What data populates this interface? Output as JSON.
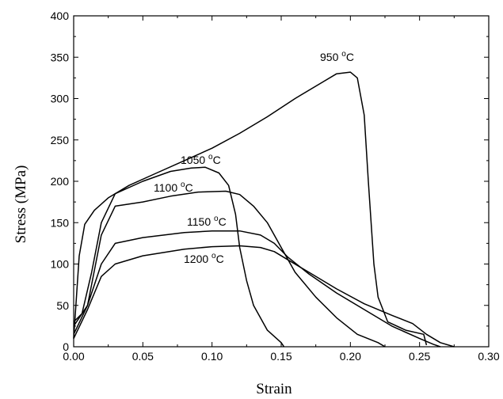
{
  "chart_data": {
    "type": "line",
    "title": "",
    "xlabel": "Strain",
    "ylabel": "Stress (MPa)",
    "xlim": [
      0.0,
      0.3
    ],
    "ylim": [
      0,
      400
    ],
    "grid": false,
    "legend": "none",
    "x_ticks": [
      "0.00",
      "0.05",
      "0.10",
      "0.15",
      "0.20",
      "0.25",
      "0.30"
    ],
    "y_ticks": [
      "0",
      "50",
      "100",
      "150",
      "200",
      "250",
      "300",
      "350",
      "400"
    ],
    "series": [
      {
        "name": "950 °C",
        "label_base": "950 ",
        "label_unit": "C",
        "points": [
          [
            0.0,
            10
          ],
          [
            0.004,
            110
          ],
          [
            0.008,
            148
          ],
          [
            0.015,
            165
          ],
          [
            0.025,
            180
          ],
          [
            0.04,
            195
          ],
          [
            0.06,
            210
          ],
          [
            0.08,
            225
          ],
          [
            0.1,
            240
          ],
          [
            0.12,
            258
          ],
          [
            0.14,
            278
          ],
          [
            0.16,
            300
          ],
          [
            0.18,
            320
          ],
          [
            0.19,
            330
          ],
          [
            0.2,
            332
          ],
          [
            0.205,
            325
          ],
          [
            0.21,
            280
          ],
          [
            0.213,
            200
          ],
          [
            0.217,
            100
          ],
          [
            0.22,
            60
          ],
          [
            0.227,
            30
          ],
          [
            0.24,
            20
          ],
          [
            0.253,
            15
          ],
          [
            0.255,
            2
          ]
        ]
      },
      {
        "name": "1050 °C",
        "label_base": "1050 ",
        "label_unit": "C",
        "points": [
          [
            0.0,
            30
          ],
          [
            0.006,
            40
          ],
          [
            0.013,
            90
          ],
          [
            0.02,
            150
          ],
          [
            0.03,
            185
          ],
          [
            0.05,
            200
          ],
          [
            0.07,
            212
          ],
          [
            0.085,
            216
          ],
          [
            0.095,
            217
          ],
          [
            0.105,
            210
          ],
          [
            0.112,
            195
          ],
          [
            0.117,
            160
          ],
          [
            0.12,
            120
          ],
          [
            0.125,
            80
          ],
          [
            0.13,
            50
          ],
          [
            0.14,
            20
          ],
          [
            0.15,
            5
          ],
          [
            0.152,
            0
          ]
        ]
      },
      {
        "name": "1100 °C",
        "label_base": "1100 ",
        "label_unit": "C",
        "points": [
          [
            0.0,
            25
          ],
          [
            0.01,
            50
          ],
          [
            0.02,
            135
          ],
          [
            0.03,
            170
          ],
          [
            0.05,
            175
          ],
          [
            0.07,
            182
          ],
          [
            0.09,
            187
          ],
          [
            0.11,
            188
          ],
          [
            0.12,
            184
          ],
          [
            0.13,
            170
          ],
          [
            0.14,
            150
          ],
          [
            0.15,
            120
          ],
          [
            0.16,
            90
          ],
          [
            0.175,
            60
          ],
          [
            0.19,
            35
          ],
          [
            0.205,
            15
          ],
          [
            0.22,
            5
          ],
          [
            0.225,
            0
          ]
        ]
      },
      {
        "name": "1150 °C",
        "label_base": "1150 ",
        "label_unit": "C",
        "points": [
          [
            0.0,
            15
          ],
          [
            0.01,
            50
          ],
          [
            0.02,
            100
          ],
          [
            0.03,
            125
          ],
          [
            0.05,
            132
          ],
          [
            0.08,
            138
          ],
          [
            0.1,
            140
          ],
          [
            0.12,
            140
          ],
          [
            0.135,
            135
          ],
          [
            0.145,
            125
          ],
          [
            0.155,
            108
          ],
          [
            0.17,
            88
          ],
          [
            0.19,
            65
          ],
          [
            0.21,
            45
          ],
          [
            0.23,
            25
          ],
          [
            0.25,
            10
          ],
          [
            0.26,
            3
          ],
          [
            0.265,
            0
          ]
        ]
      },
      {
        "name": "1200 °C",
        "label_base": "1200 ",
        "label_unit": "C",
        "points": [
          [
            0.0,
            10
          ],
          [
            0.01,
            45
          ],
          [
            0.02,
            85
          ],
          [
            0.03,
            100
          ],
          [
            0.05,
            110
          ],
          [
            0.08,
            118
          ],
          [
            0.1,
            121
          ],
          [
            0.12,
            122
          ],
          [
            0.135,
            120
          ],
          [
            0.145,
            115
          ],
          [
            0.155,
            105
          ],
          [
            0.17,
            90
          ],
          [
            0.19,
            70
          ],
          [
            0.21,
            52
          ],
          [
            0.23,
            38
          ],
          [
            0.245,
            28
          ],
          [
            0.255,
            15
          ],
          [
            0.265,
            5
          ],
          [
            0.275,
            0
          ]
        ]
      }
    ]
  }
}
